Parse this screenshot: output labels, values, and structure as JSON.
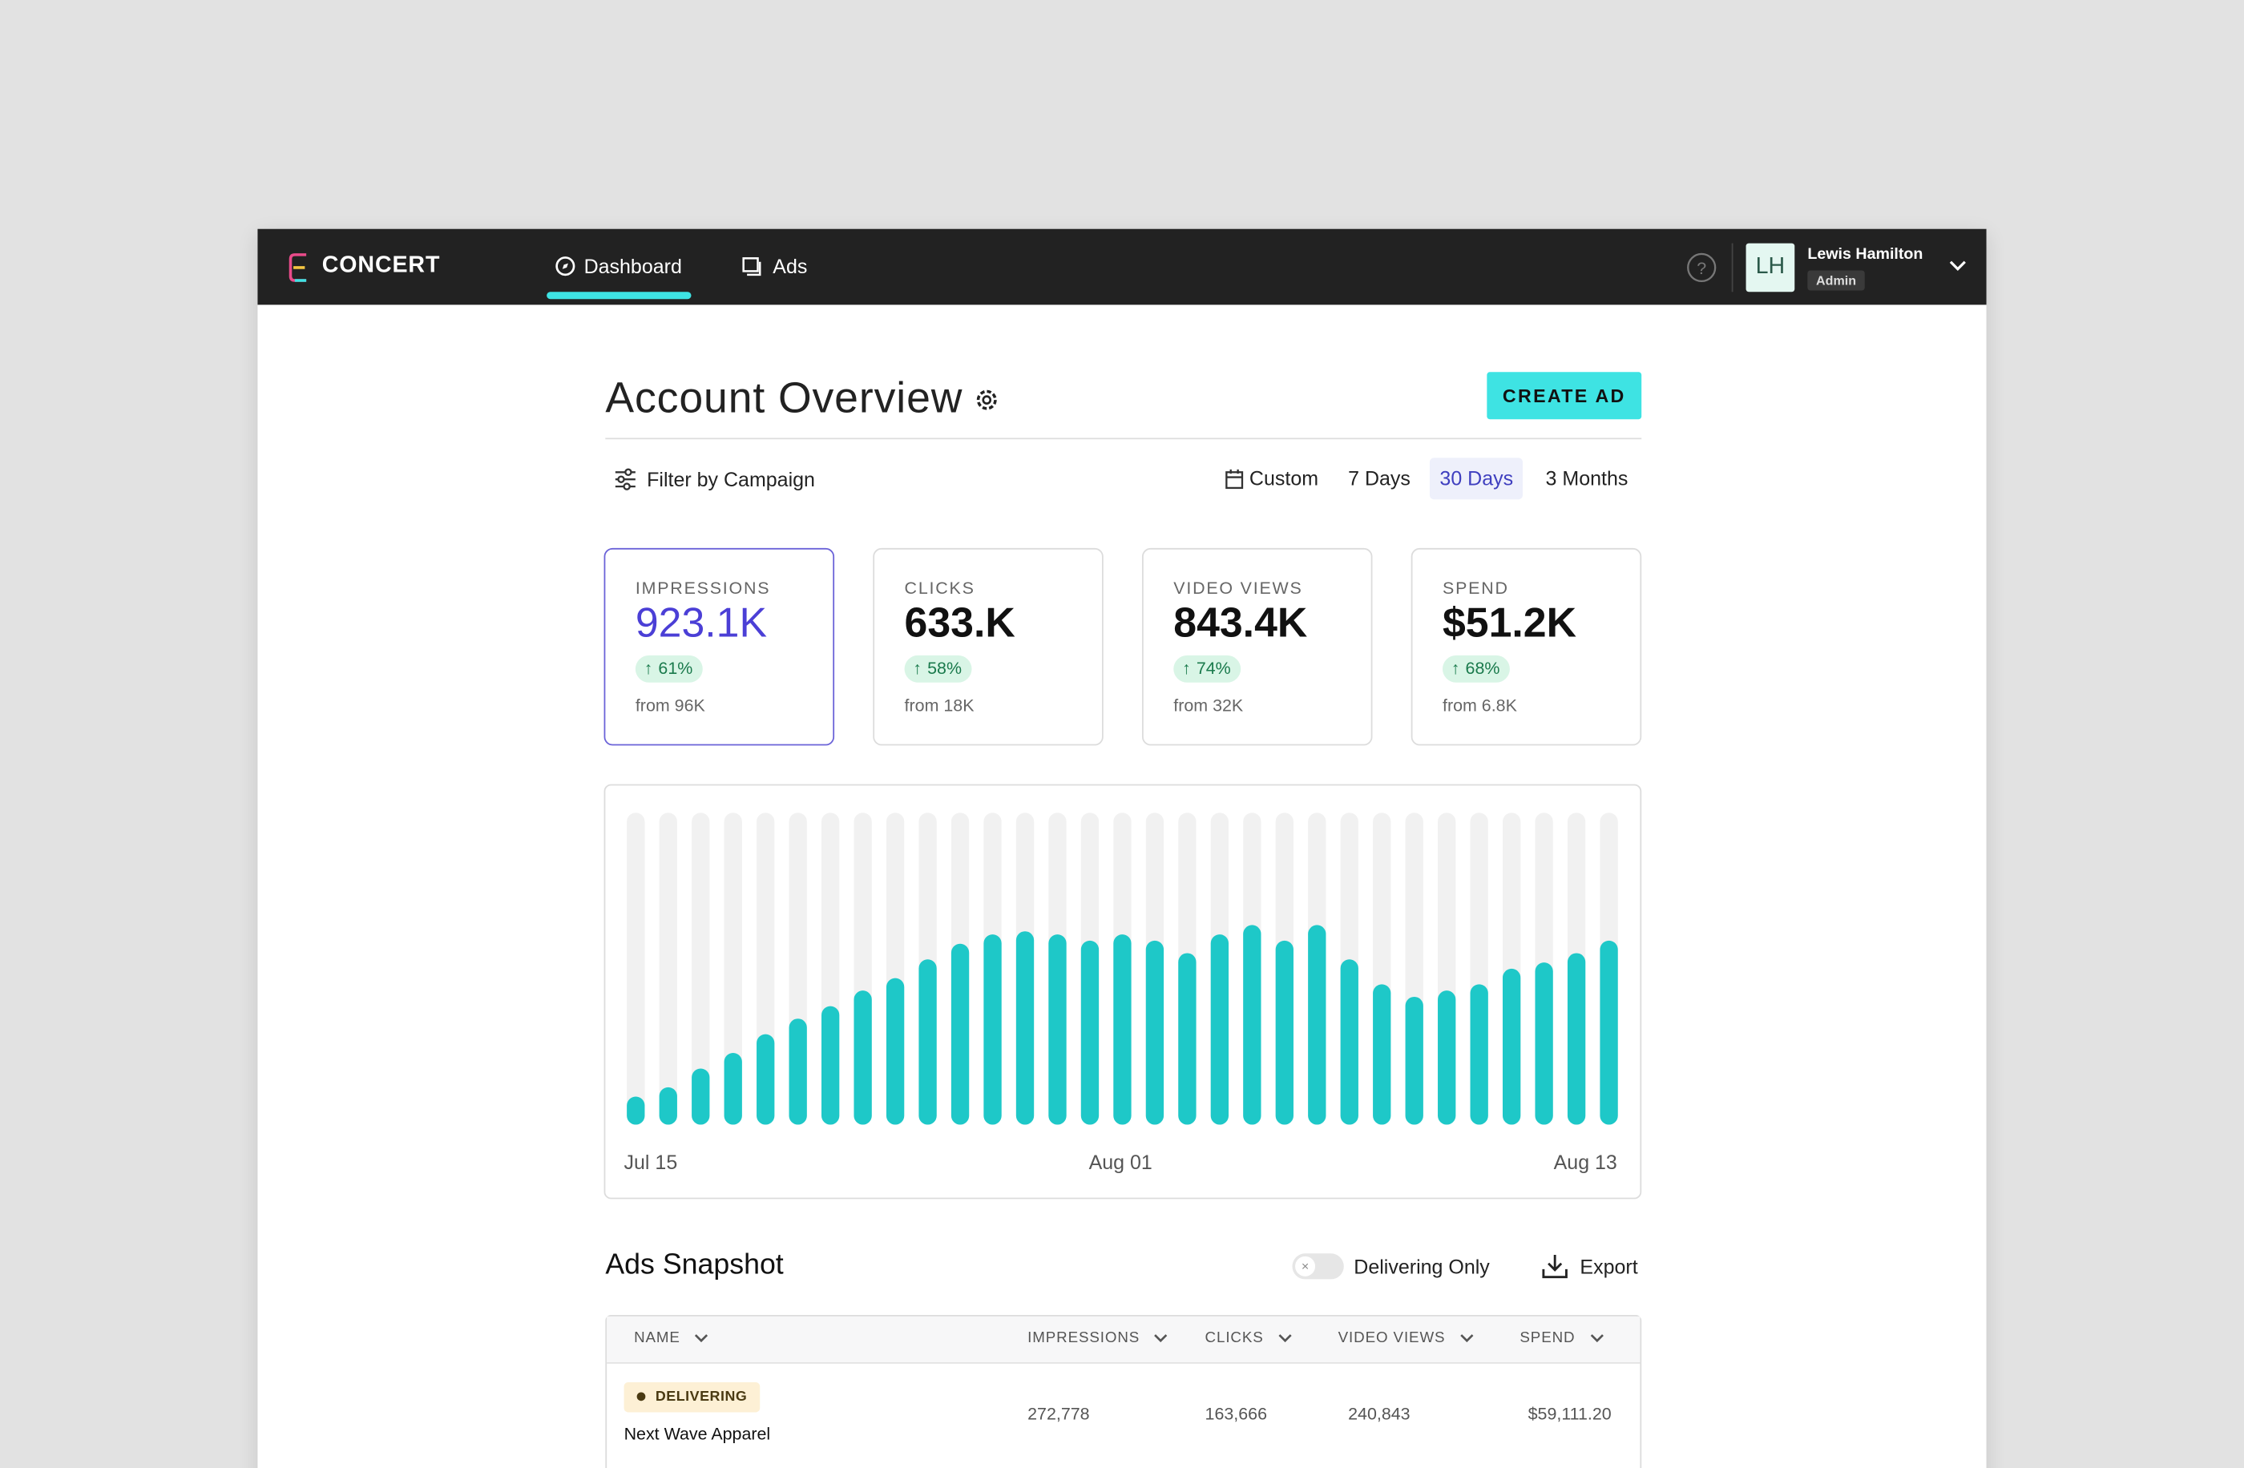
{
  "nav": {
    "brand": "CONCERT",
    "items": [
      "Dashboard",
      "Ads"
    ],
    "active": 0,
    "user": {
      "initials": "LH",
      "name": "Lewis Hamilton",
      "role": "Admin"
    }
  },
  "header": {
    "title": "Account Overview",
    "button": "CREATE AD"
  },
  "filters": {
    "filter": "Filter by Campaign",
    "ranges": [
      "Custom",
      "7 Days",
      "30 Days",
      "3 Months"
    ],
    "active": 2
  },
  "metrics": [
    {
      "label": "IMPRESSIONS",
      "value": "923.1K",
      "change": "61%",
      "from": "from 96K"
    },
    {
      "label": "CLICKS",
      "value": "633.K",
      "change": "58%",
      "from": "from 18K"
    },
    {
      "label": "VIDEO VIEWS",
      "value": "843.4K",
      "change": "74%",
      "from": "from 32K"
    },
    {
      "label": "SPEND",
      "value": "$51.2K",
      "change": "68%",
      "from": "from 6.8K"
    }
  ],
  "chart": {
    "type": "bar",
    "color": "#1ec8c8",
    "track_color": "#f1f1f1",
    "ylim": [
      0,
      100
    ],
    "values": [
      9,
      12,
      18,
      23,
      29,
      34,
      38,
      43,
      47,
      53,
      58,
      61,
      62,
      61,
      59,
      61,
      59,
      55,
      61,
      64,
      59,
      64,
      53,
      45,
      41,
      43,
      45,
      50,
      52,
      55,
      59
    ],
    "x_labels": [
      "Jul 15",
      "Aug 01",
      "Aug 13"
    ]
  },
  "snapshot": {
    "title": "Ads Snapshot",
    "toggle": "Delivering Only",
    "export": "Export"
  },
  "table": {
    "columns": [
      "NAME",
      "IMPRESSIONS",
      "CLICKS",
      "VIDEO VIEWS",
      "SPEND"
    ],
    "rows": [
      {
        "status": "DELIVERING",
        "name": "Next Wave Apparel",
        "cells": [
          "272,778",
          "163,666",
          "240,843",
          "$59,111.20"
        ]
      }
    ]
  }
}
